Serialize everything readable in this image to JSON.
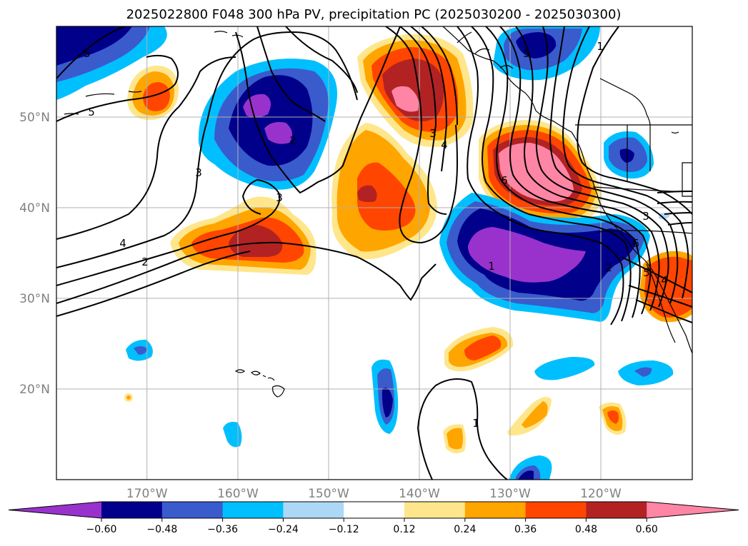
{
  "title": "2025022800 F048 300 hPa PV, precipitation PC (2025030200 - 2025030300)",
  "map": {
    "projection": "PlateCarree",
    "extent_lon": [
      -180,
      -110
    ],
    "extent_lat": [
      10,
      60
    ],
    "gridlines": true,
    "lat_labels": [
      "20°N",
      "30°N",
      "40°N",
      "50°N"
    ],
    "lon_labels": [
      "170°W",
      "160°W",
      "150°W",
      "140°W",
      "130°W",
      "120°W"
    ],
    "pv_contour_labels": [
      "1",
      "2",
      "3",
      "4",
      "5",
      "6"
    ]
  },
  "colorbar": {
    "orientation": "horizontal",
    "extend": "both",
    "tick_labels": [
      "−0.60",
      "−0.48",
      "−0.36",
      "−0.24",
      "−0.12",
      "0.12",
      "0.24",
      "0.36",
      "0.48",
      "0.60"
    ],
    "colors": [
      "#9932cc",
      "#00008b",
      "#3a5bcc",
      "#00bfff",
      "#add8f5",
      "#ffffff",
      "#ffe68c",
      "#ffa500",
      "#ff4500",
      "#b22222",
      "#ff85a5"
    ]
  },
  "chart_data": {
    "type": "heatmap",
    "title": "2025022800 F048 300 hPa PV, precipitation PC (2025030200 - 2025030300)",
    "fields": [
      "precipitation PC (filled)",
      "300 hPa PV (contours)"
    ],
    "levels": [
      -0.6,
      -0.48,
      -0.36,
      -0.24,
      -0.12,
      0.12,
      0.24,
      0.36,
      0.48,
      0.6
    ],
    "pv_contour_values": [
      1,
      2,
      3,
      4,
      5,
      6
    ]
  }
}
